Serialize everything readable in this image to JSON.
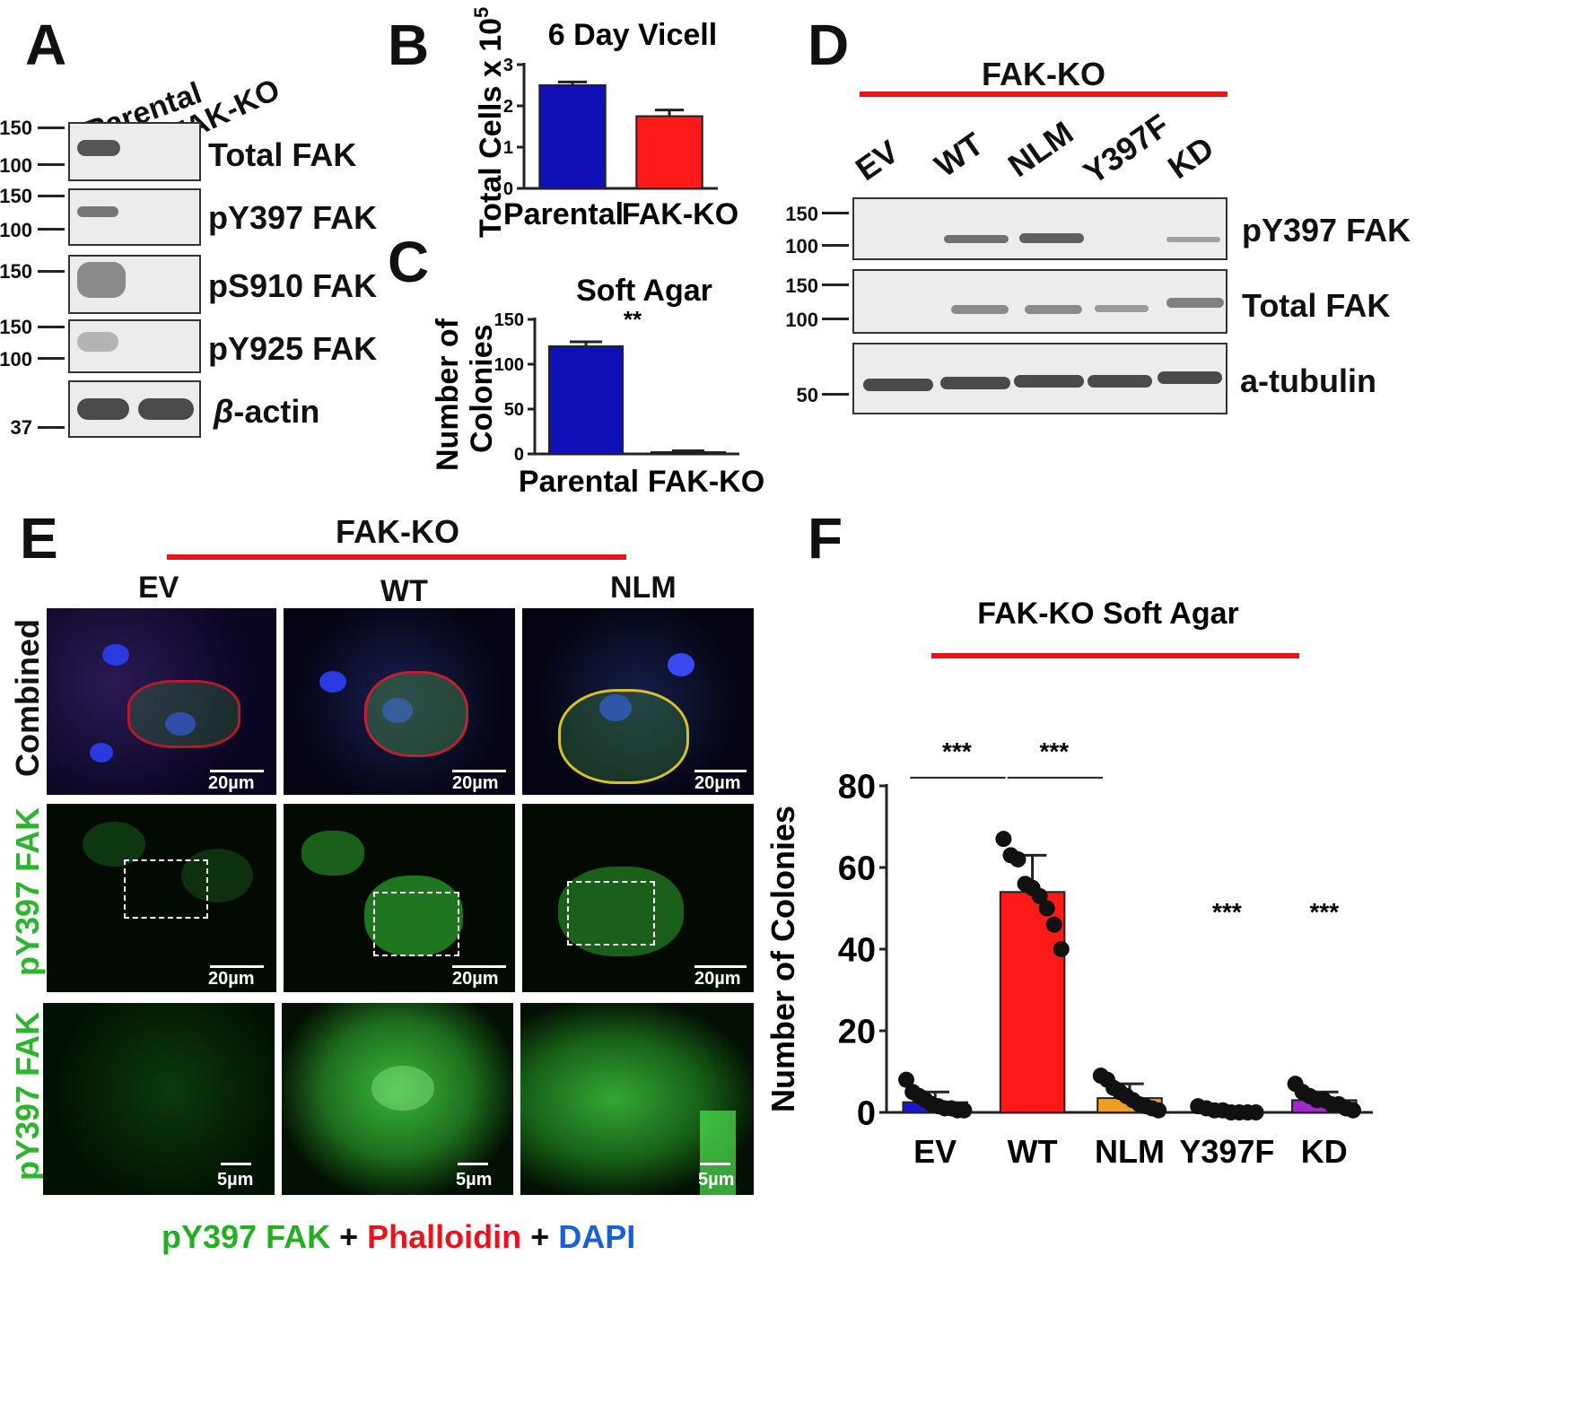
{
  "panels": {
    "A": "A",
    "B": "B",
    "C": "C",
    "D": "D",
    "E": "E",
    "F": "F"
  },
  "panelA": {
    "lanes": [
      "Parental",
      "FAK-KO"
    ],
    "rows": [
      {
        "label": "Total FAK",
        "mw": [
          "150",
          "100"
        ]
      },
      {
        "label": "pY397 FAK",
        "mw": [
          "150",
          "100"
        ]
      },
      {
        "label": "pS910 FAK",
        "mw": [
          "150"
        ]
      },
      {
        "label": "pY925 FAK",
        "mw": [
          "150",
          "100"
        ]
      },
      {
        "label_greek": "β",
        "label_rest": "-actin",
        "mw": [
          "37"
        ]
      }
    ]
  },
  "panelD": {
    "header": "FAK-KO",
    "lanes": [
      "EV",
      "WT",
      "NLM",
      "Y397F",
      "KD"
    ],
    "rows": [
      {
        "label": "pY397 FAK",
        "mw": [
          "150",
          "100"
        ]
      },
      {
        "label": "Total FAK",
        "mw": [
          "150",
          "100"
        ]
      },
      {
        "label": "a-tubulin",
        "mw": [
          "50"
        ]
      }
    ]
  },
  "panelE": {
    "header": "FAK-KO",
    "columns": [
      "EV",
      "WT",
      "NLM"
    ],
    "row_labels": [
      "Combined",
      "pY397 FAK",
      "pY397 FAK"
    ],
    "scalebars": [
      "20µm",
      "20µm",
      "5µm"
    ],
    "legend": {
      "green": "pY397 FAK",
      "plus": "+",
      "red": "Phalloidin",
      "blue": "DAPI"
    }
  },
  "chart_data": [
    {
      "id": "B",
      "type": "bar",
      "title": "6 Day Vicell",
      "ylabel_main": "Total Cells x 10",
      "ylabel_sup": "5",
      "categories": [
        "Parental",
        "FAK-KO"
      ],
      "values": [
        2.5,
        1.75
      ],
      "errors": [
        0.08,
        0.15
      ],
      "colors": [
        "#1010b8",
        "#ff1a1a"
      ],
      "ylim": [
        0,
        3
      ],
      "yticks": [
        "0",
        "1",
        "2",
        "3"
      ]
    },
    {
      "id": "C",
      "type": "bar",
      "title": "Soft Agar",
      "ylabel": [
        "Number of",
        "Colonies"
      ],
      "categories": [
        "Parental",
        "FAK-KO"
      ],
      "values": [
        120,
        2
      ],
      "errors": [
        5,
        1.5
      ],
      "colors": [
        "#1010b8",
        "#ff1a1a"
      ],
      "ylim": [
        0,
        150
      ],
      "yticks": [
        "0",
        "50",
        "100",
        "150"
      ],
      "significance": "**"
    },
    {
      "id": "F",
      "type": "bar",
      "title": "FAK-KO Soft Agar",
      "ylabel": "Number of Colonies",
      "categories": [
        "EV",
        "WT",
        "NLM",
        "Y397F",
        "KD"
      ],
      "values": [
        2.5,
        54,
        3.5,
        0.5,
        3
      ],
      "errors": [
        2.5,
        9,
        3.5,
        0.5,
        2
      ],
      "colors": [
        "#1a1ad0",
        "#ff1a1a",
        "#f0a020",
        "#5a5a5a",
        "#a02ad0"
      ],
      "ylim": [
        0,
        80
      ],
      "yticks": [
        "0",
        "20",
        "40",
        "60",
        "80"
      ],
      "points": [
        [
          8,
          5,
          4,
          3,
          2,
          1.5,
          1,
          1,
          0.5,
          0.5
        ],
        [
          67,
          63,
          62,
          56,
          55,
          53,
          50,
          46,
          40
        ],
        [
          9,
          8,
          6,
          5,
          4,
          3,
          2,
          1.5,
          1,
          0.5
        ],
        [
          1.5,
          1,
          0.5,
          0.5,
          0,
          0,
          0,
          0
        ],
        [
          7,
          5,
          4,
          3,
          3,
          2,
          2,
          1,
          0.5
        ]
      ],
      "comparisons": [
        {
          "from": 0,
          "to": 1,
          "label": "***"
        },
        {
          "from": 1,
          "to": 2,
          "label": "***"
        }
      ],
      "marks": [
        {
          "at": 3,
          "label": "***"
        },
        {
          "at": 4,
          "label": "***"
        }
      ]
    }
  ]
}
